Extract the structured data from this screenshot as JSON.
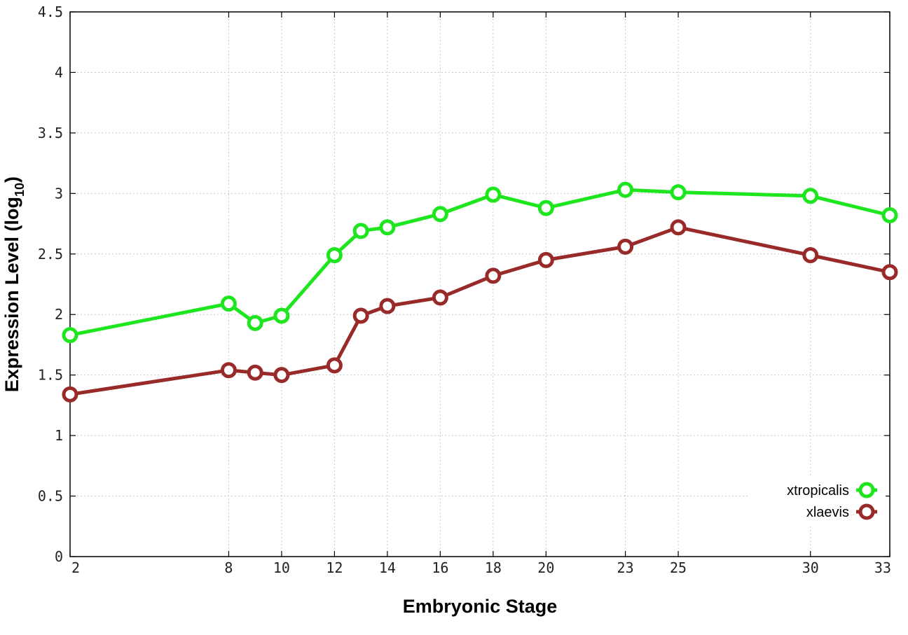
{
  "chart_data": {
    "type": "line",
    "title": "",
    "xlabel": "Embryonic Stage",
    "ylabel_main": "Expression Level (log",
    "ylabel_sub": "10",
    "ylabel_close": ")",
    "x": [
      2,
      8,
      9,
      10,
      12,
      13,
      14,
      16,
      18,
      20,
      23,
      25,
      30,
      33
    ],
    "xticks": [
      2,
      8,
      10,
      12,
      14,
      16,
      18,
      20,
      23,
      25,
      30,
      33
    ],
    "xlim": [
      2,
      33
    ],
    "yticks": [
      "0",
      "0.5",
      "1",
      "1.5",
      "2",
      "2.5",
      "3",
      "3.5",
      "4",
      "4.5"
    ],
    "ylim": [
      0,
      4.5
    ],
    "grid": true,
    "legend_position": "bottom-right",
    "series": [
      {
        "name": "xtropicalis",
        "color": "#1ee61e",
        "values": [
          1.83,
          2.09,
          1.93,
          1.99,
          2.49,
          2.69,
          2.72,
          2.83,
          2.99,
          2.88,
          3.03,
          3.01,
          2.98,
          2.82
        ]
      },
      {
        "name": "xlaevis",
        "color": "#992a2a",
        "values": [
          1.34,
          1.54,
          1.52,
          1.5,
          1.58,
          1.99,
          2.07,
          2.14,
          2.32,
          2.45,
          2.56,
          2.72,
          2.49,
          2.35
        ]
      }
    ]
  }
}
